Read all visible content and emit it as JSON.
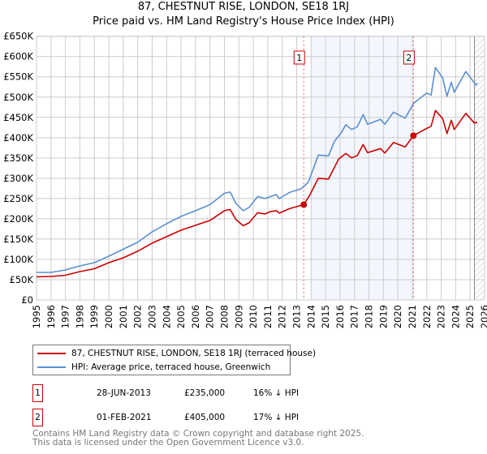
{
  "title": {
    "line1": "87, CHESTNUT RISE, LONDON, SE18 1RJ",
    "line2": "Price paid vs. HM Land Registry's House Price Index (HPI)"
  },
  "chart_data": {
    "type": "line",
    "ylim": [
      0,
      650000
    ],
    "xlim": [
      1995,
      2026
    ],
    "yticks": [
      {
        "v": 0,
        "label": "£0"
      },
      {
        "v": 50000,
        "label": "£50K"
      },
      {
        "v": 100000,
        "label": "£100K"
      },
      {
        "v": 150000,
        "label": "£150K"
      },
      {
        "v": 200000,
        "label": "£200K"
      },
      {
        "v": 250000,
        "label": "£250K"
      },
      {
        "v": 300000,
        "label": "£300K"
      },
      {
        "v": 350000,
        "label": "£350K"
      },
      {
        "v": 400000,
        "label": "£400K"
      },
      {
        "v": 450000,
        "label": "£450K"
      },
      {
        "v": 500000,
        "label": "£500K"
      },
      {
        "v": 550000,
        "label": "£550K"
      },
      {
        "v": 600000,
        "label": "£600K"
      },
      {
        "v": 650000,
        "label": "£650K"
      }
    ],
    "xticks": [
      "1995",
      "1996",
      "1997",
      "1998",
      "1999",
      "2000",
      "2001",
      "2002",
      "2003",
      "2004",
      "2005",
      "2006",
      "2007",
      "2008",
      "2009",
      "2010",
      "2011",
      "2012",
      "2013",
      "2014",
      "2015",
      "2016",
      "2017",
      "2018",
      "2019",
      "2020",
      "2021",
      "2022",
      "2023",
      "2024",
      "2025",
      "2026"
    ],
    "grid": true,
    "series": [
      {
        "name": "87, CHESTNUT RISE, LONDON, SE18 1RJ (terraced house)",
        "color": "#cc0000",
        "x": [
          1995,
          1996,
          1997,
          1998,
          1999,
          2000,
          2001,
          2002,
          2003,
          2004,
          2005,
          2006,
          2007,
          2008,
          2008.4,
          2008.8,
          2009.3,
          2009.7,
          2010.3,
          2010.8,
          2011.2,
          2011.6,
          2011.8,
          2012.5,
          2013.49,
          2013.9,
          2014.5,
          2015.2,
          2015.9,
          2016.4,
          2016.8,
          2017.2,
          2017.6,
          2017.9,
          2018.8,
          2019.1,
          2019.7,
          2020.5,
          2021.08,
          2022.0,
          2022.3,
          2022.6,
          2023.1,
          2023.4,
          2023.7,
          2023.9,
          2024.7,
          2025.3,
          2025.5
        ],
        "y": [
          57000,
          58000,
          61000,
          70000,
          77000,
          92000,
          104000,
          120000,
          140000,
          156000,
          172000,
          184000,
          196000,
          220000,
          223000,
          198000,
          183000,
          190000,
          215000,
          212000,
          218000,
          220000,
          214000,
          225000,
          235000,
          258000,
          300000,
          298000,
          347000,
          361000,
          350000,
          356000,
          383000,
          363000,
          373000,
          362000,
          388000,
          377000,
          405000,
          423000,
          428000,
          467000,
          447000,
          410000,
          443000,
          420000,
          460000,
          436000,
          438000
        ]
      },
      {
        "name": "HPI: Average price, terraced house, Greenwich",
        "color": "#5b8fd0",
        "x": [
          1995,
          1996,
          1997,
          1998,
          1999,
          2000,
          2001,
          2002,
          2003,
          2004,
          2005,
          2006,
          2007,
          2008,
          2008.4,
          2008.8,
          2009.3,
          2009.7,
          2010.3,
          2010.8,
          2011.2,
          2011.6,
          2011.8,
          2012.5,
          2013.3,
          2013.8,
          2014.5,
          2015.2,
          2015.6,
          2016.1,
          2016.4,
          2016.8,
          2017.2,
          2017.6,
          2017.9,
          2018.8,
          2019.1,
          2019.7,
          2020.5,
          2021.1,
          2022.0,
          2022.3,
          2022.6,
          2023.1,
          2023.4,
          2023.7,
          2023.9,
          2024.7,
          2025.4,
          2025.5
        ],
        "y": [
          68000,
          68000,
          74000,
          84000,
          92000,
          108000,
          125000,
          142000,
          168000,
          188000,
          206000,
          220000,
          235000,
          263000,
          266000,
          238000,
          220000,
          228000,
          255000,
          250000,
          255000,
          260000,
          250000,
          265000,
          274000,
          290000,
          357000,
          355000,
          390000,
          413000,
          432000,
          420000,
          427000,
          457000,
          433000,
          445000,
          433000,
          463000,
          448000,
          485000,
          510000,
          505000,
          573000,
          547000,
          502000,
          537000,
          512000,
          563000,
          530000,
          535000
        ]
      }
    ],
    "sales": [
      {
        "label": "1",
        "x": 2013.49,
        "y": 235000
      },
      {
        "label": "2",
        "x": 2021.08,
        "y": 405000
      }
    ],
    "legend_placement": "below"
  },
  "legend": {
    "items": [
      "87, CHESTNUT RISE, LONDON, SE18 1RJ (terraced house)",
      "HPI: Average price, terraced house, Greenwich"
    ]
  },
  "transactions": [
    {
      "num": "1",
      "date": "28-JUN-2013",
      "price": "£235,000",
      "hpi": "16% ↓ HPI"
    },
    {
      "num": "2",
      "date": "01-FEB-2021",
      "price": "£405,000",
      "hpi": "17% ↓ HPI"
    }
  ],
  "footer": {
    "line1": "Contains HM Land Registry data © Crown copyright and database right 2025.",
    "line2": "This data is licensed under the Open Government Licence v3.0."
  }
}
